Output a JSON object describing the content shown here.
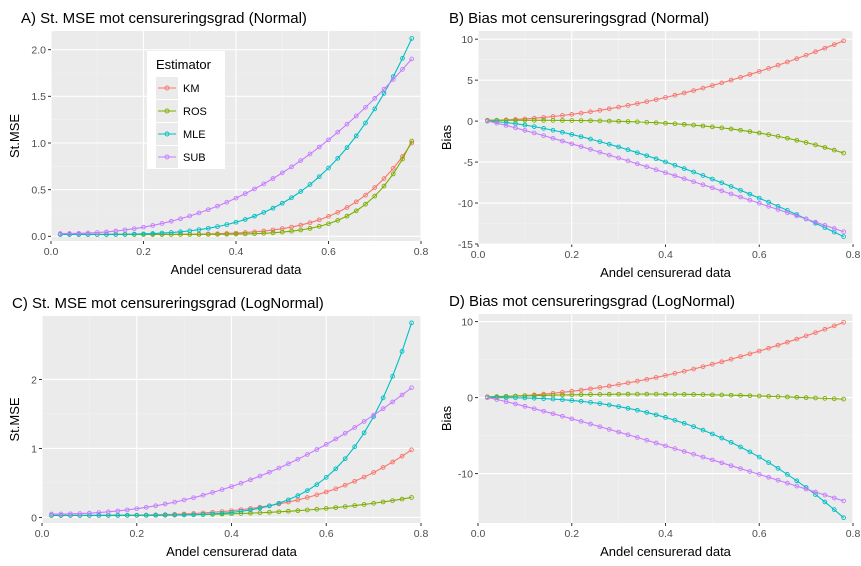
{
  "figure": {
    "background": "#ffffff",
    "panel_bg": "#ebebeb",
    "grid_major": "#ffffff",
    "grid_minor": "#f2f2f2"
  },
  "legend": {
    "title": "Estimator",
    "entries": [
      {
        "name": "KM",
        "color": "#F8766D"
      },
      {
        "name": "ROS",
        "color": "#7CAE00"
      },
      {
        "name": "MLE",
        "color": "#00BFC4"
      },
      {
        "name": "SUB",
        "color": "#C77CFF"
      }
    ],
    "placement": "inside top-left of panel A"
  },
  "chart_data": [
    {
      "id": "A",
      "type": "line",
      "title": "A) St. MSE mot censureringsgrad (Normal)",
      "xlabel": "Andel censurerad data",
      "ylabel": "St.MSE",
      "xlim": [
        0,
        0.8
      ],
      "ylim": [
        -0.05,
        2.2
      ],
      "xticks": [
        0,
        0.2,
        0.4,
        0.6,
        0.8
      ],
      "xtick_labels": [
        "0.0",
        "0.2",
        "0.4",
        "0.6",
        "0.8"
      ],
      "yticks": [
        0,
        0.5,
        1,
        1.5,
        2
      ],
      "ytick_labels": [
        "0.0",
        "0.5",
        "1.0",
        "1.5",
        "2.0"
      ],
      "x": {
        "start": 0.02,
        "end": 0.78,
        "n": 39
      },
      "series": [
        {
          "name": "KM",
          "start": 0.02,
          "end": 1.0,
          "power": 6
        },
        {
          "name": "ROS",
          "start": 0.02,
          "end": 1.02,
          "power": 8
        },
        {
          "name": "MLE",
          "start": 0.02,
          "end": 2.12,
          "power": 4
        },
        {
          "name": "SUB",
          "start": 0.03,
          "end": 1.9,
          "power": 2.3
        }
      ]
    },
    {
      "id": "B",
      "type": "line",
      "title": "B) Bias mot censureringsgrad (Normal)",
      "xlabel": "Andel censurerad data",
      "ylabel": "Bias",
      "xlim": [
        0,
        0.8
      ],
      "ylim": [
        -15,
        11
      ],
      "xticks": [
        0,
        0.2,
        0.4,
        0.6,
        0.8
      ],
      "xtick_labels": [
        "0.0",
        "0.2",
        "0.4",
        "0.6",
        "0.8"
      ],
      "yticks": [
        -15,
        -10,
        -5,
        0,
        5,
        10
      ],
      "ytick_labels": [
        "-15",
        "-10",
        "-5",
        "0",
        "5",
        "10"
      ],
      "x": {
        "start": 0.02,
        "end": 0.78,
        "n": 39
      },
      "series": [
        {
          "name": "KM",
          "start": 0.1,
          "end": 9.8,
          "power": 1.8
        },
        {
          "name": "ROS",
          "start": 0.1,
          "end": -3.9,
          "power": 3.5
        },
        {
          "name": "MLE",
          "start": 0.0,
          "end": -14.1,
          "power": 1.5
        },
        {
          "name": "SUB",
          "start": 0.0,
          "end": -13.5,
          "power": 1.1
        }
      ]
    },
    {
      "id": "C",
      "type": "line",
      "title": "C) St. MSE mot censureringsgrad (LogNormal)",
      "xlabel": "Andel censurerad data",
      "ylabel": "St.MSE",
      "xlim": [
        0,
        0.8
      ],
      "ylim": [
        -0.08,
        2.92
      ],
      "xticks": [
        0,
        0.2,
        0.4,
        0.6,
        0.8
      ],
      "xtick_labels": [
        "0.0",
        "0.2",
        "0.4",
        "0.6",
        "0.8"
      ],
      "yticks": [
        0,
        1,
        2
      ],
      "ytick_labels": [
        "0",
        "1",
        "2"
      ],
      "x": {
        "start": 0.02,
        "end": 0.78,
        "n": 39
      },
      "series": [
        {
          "name": "KM",
          "start": 0.03,
          "end": 0.98,
          "power": 3.8
        },
        {
          "name": "ROS",
          "start": 0.03,
          "end": 0.29,
          "power": 3.5
        },
        {
          "name": "MLE",
          "start": 0.03,
          "end": 2.82,
          "power": 6
        },
        {
          "name": "SUB",
          "start": 0.05,
          "end": 1.88,
          "power": 2.2
        }
      ]
    },
    {
      "id": "D",
      "type": "line",
      "title": "D) Bias mot censureringsgrad (LogNormal)",
      "xlabel": "Andel censurerad data",
      "ylabel": "Bias",
      "xlim": [
        0,
        0.8
      ],
      "ylim": [
        -16.5,
        11
      ],
      "xticks": [
        0,
        0.2,
        0.4,
        0.6,
        0.8
      ],
      "xtick_labels": [
        "0.0",
        "0.2",
        "0.4",
        "0.6",
        "0.8"
      ],
      "yticks": [
        -10,
        0,
        10
      ],
      "ytick_labels": [
        "-10",
        "0",
        "10"
      ],
      "x": {
        "start": 0.02,
        "end": 0.78,
        "n": 39
      },
      "series": [
        {
          "name": "KM",
          "start": 0.1,
          "end": 9.9,
          "power": 1.8
        },
        {
          "name": "ROS",
          "start": 0.1,
          "end": -0.2,
          "power": 1,
          "bump": 0.5
        },
        {
          "name": "MLE",
          "start": 0.0,
          "end": -15.8,
          "power": 2.6
        },
        {
          "name": "SUB",
          "start": 0.0,
          "end": -13.6,
          "power": 1.1
        }
      ]
    }
  ]
}
